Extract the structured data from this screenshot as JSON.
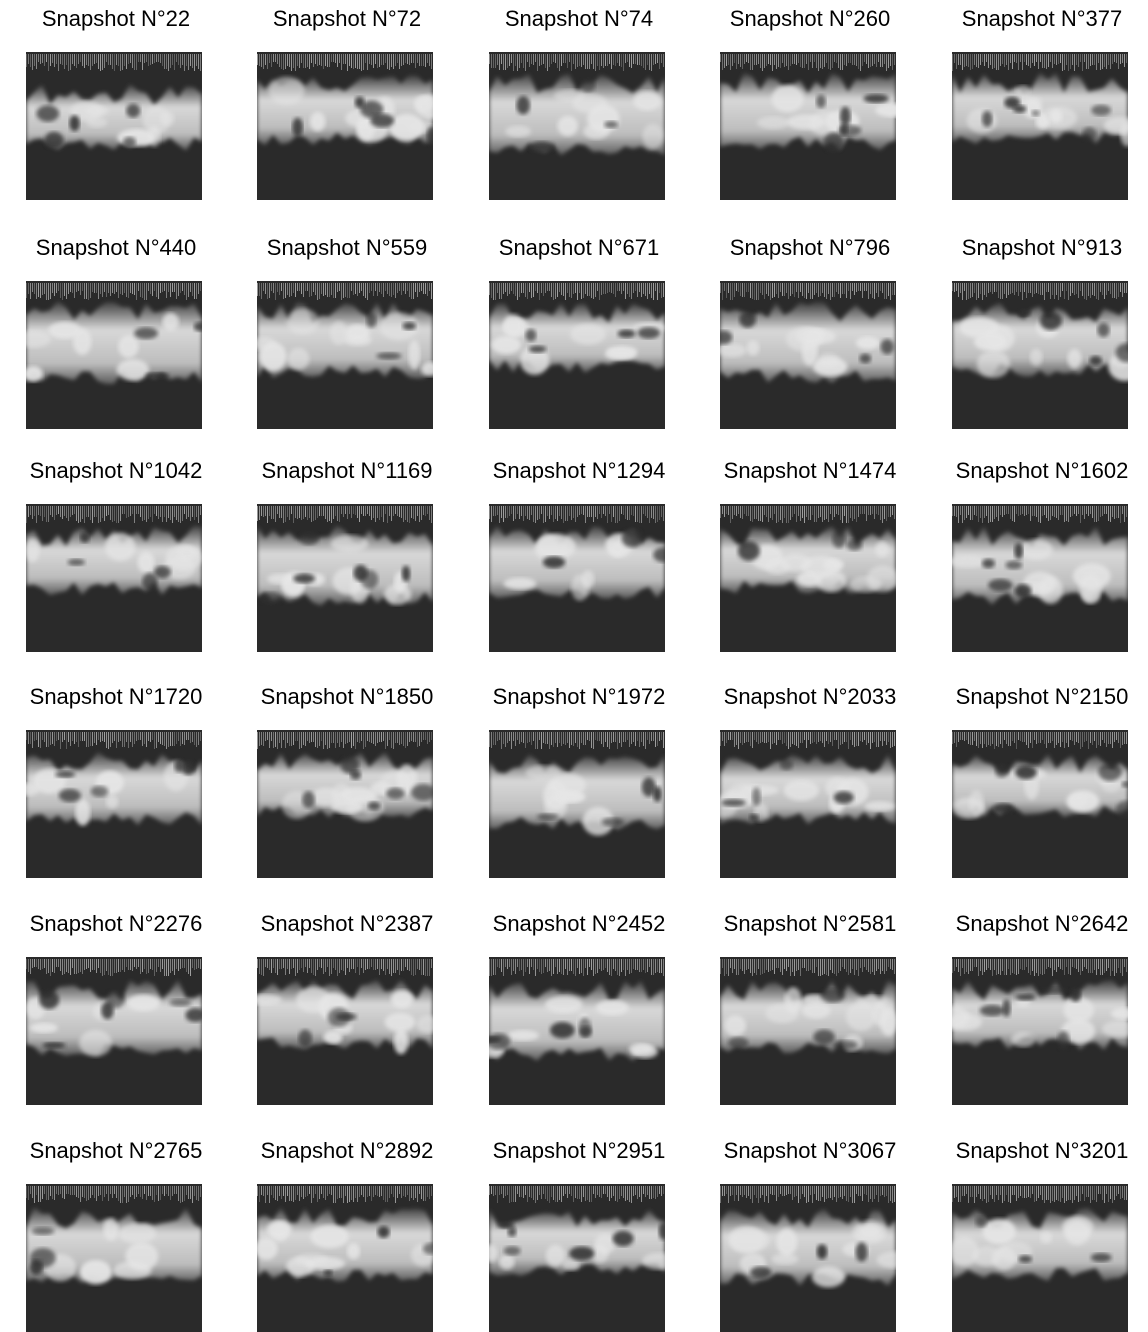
{
  "figure": {
    "background_color": "#ffffff",
    "image_colors": {
      "background": "#2a2a2a",
      "band": "#e6e6e6",
      "top_strip": "#8a8a8a"
    },
    "snapshots": [
      {
        "label": "Snapshot N°22"
      },
      {
        "label": "Snapshot N°72"
      },
      {
        "label": "Snapshot N°74"
      },
      {
        "label": "Snapshot N°260"
      },
      {
        "label": "Snapshot N°377"
      },
      {
        "label": "Snapshot N°440"
      },
      {
        "label": "Snapshot N°559"
      },
      {
        "label": "Snapshot N°671"
      },
      {
        "label": "Snapshot N°796"
      },
      {
        "label": "Snapshot N°913"
      },
      {
        "label": "Snapshot N°1042"
      },
      {
        "label": "Snapshot N°1169"
      },
      {
        "label": "Snapshot N°1294"
      },
      {
        "label": "Snapshot N°1474"
      },
      {
        "label": "Snapshot N°1602"
      },
      {
        "label": "Snapshot N°1720"
      },
      {
        "label": "Snapshot N°1850"
      },
      {
        "label": "Snapshot N°1972"
      },
      {
        "label": "Snapshot N°2033"
      },
      {
        "label": "Snapshot N°2150"
      },
      {
        "label": "Snapshot N°2276"
      },
      {
        "label": "Snapshot N°2387"
      },
      {
        "label": "Snapshot N°2452"
      },
      {
        "label": "Snapshot N°2581"
      },
      {
        "label": "Snapshot N°2642"
      },
      {
        "label": "Snapshot N°2765"
      },
      {
        "label": "Snapshot N°2892"
      },
      {
        "label": "Snapshot N°2951"
      },
      {
        "label": "Snapshot N°3067"
      },
      {
        "label": "Snapshot N°3201"
      }
    ]
  }
}
